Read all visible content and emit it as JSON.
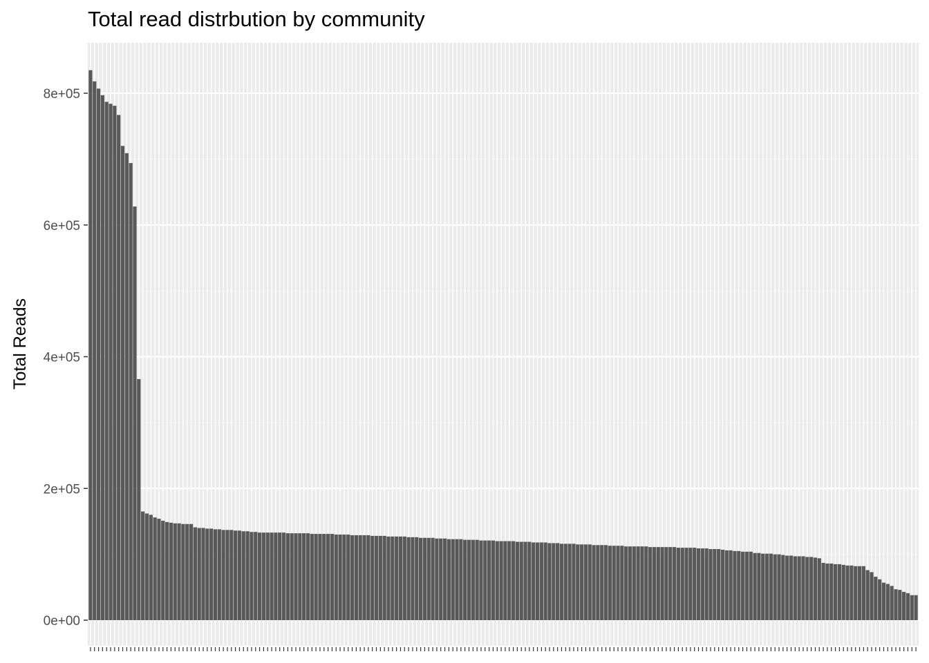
{
  "chart_data": {
    "type": "bar",
    "title": "Total read distrbution by community",
    "xlabel": "",
    "ylabel": "Total Reads",
    "ylim": [
      0,
      870000
    ],
    "yticks": [
      0,
      200000,
      400000,
      600000,
      800000
    ],
    "ytick_labels": [
      "0e+00",
      "2e+05",
      "4e+05",
      "6e+05",
      "8e+05"
    ],
    "grid": true,
    "sorted": "descending",
    "values": [
      835000,
      818000,
      807000,
      797000,
      787000,
      784000,
      781000,
      767000,
      720000,
      709000,
      694000,
      628000,
      366000,
      165000,
      162000,
      160000,
      156000,
      154000,
      151000,
      149000,
      148000,
      147000,
      147000,
      146000,
      146000,
      146000,
      141000,
      140000,
      140000,
      139000,
      139000,
      138000,
      138000,
      137000,
      137000,
      137000,
      136000,
      136000,
      135000,
      135000,
      134000,
      134000,
      133000,
      133000,
      133000,
      133000,
      133000,
      133000,
      133000,
      132000,
      132000,
      132000,
      132000,
      132000,
      132000,
      131000,
      131000,
      131000,
      131000,
      131000,
      131000,
      130000,
      130000,
      130000,
      130000,
      129000,
      129000,
      129000,
      129000,
      129000,
      128000,
      128000,
      128000,
      128000,
      127000,
      127000,
      127000,
      127000,
      127000,
      126000,
      126000,
      126000,
      125000,
      125000,
      125000,
      125000,
      124000,
      124000,
      124000,
      123000,
      123000,
      123000,
      123000,
      122000,
      122000,
      122000,
      122000,
      121000,
      121000,
      121000,
      121000,
      120000,
      120000,
      120000,
      120000,
      120000,
      119000,
      119000,
      119000,
      119000,
      118000,
      118000,
      118000,
      118000,
      117000,
      117000,
      117000,
      116000,
      116000,
      116000,
      116000,
      115000,
      115000,
      115000,
      115000,
      114000,
      114000,
      114000,
      114000,
      113000,
      113000,
      113000,
      113000,
      112000,
      112000,
      112000,
      112000,
      112000,
      112000,
      111000,
      111000,
      111000,
      111000,
      111000,
      111000,
      111000,
      110000,
      110000,
      110000,
      110000,
      110000,
      109000,
      109000,
      109000,
      108000,
      108000,
      108000,
      107000,
      106000,
      106000,
      105000,
      105000,
      104000,
      104000,
      104000,
      102000,
      102000,
      101000,
      101000,
      101000,
      100000,
      100000,
      99000,
      98000,
      98000,
      97000,
      97000,
      97000,
      96000,
      96000,
      95000,
      94000,
      87000,
      86000,
      86000,
      85000,
      85000,
      84000,
      83000,
      83000,
      82000,
      82000,
      82000,
      76000,
      73000,
      66000,
      62000,
      57000,
      55000,
      52000,
      47000,
      46000,
      43000,
      41000,
      38000,
      38000
    ]
  },
  "colors": {
    "bar": "#595959",
    "panel": "#ebebeb",
    "grid_major": "#ffffff",
    "grid_minor": "#f2f2f2",
    "axis_text": "#4d4d4d",
    "tick": "#333333"
  }
}
